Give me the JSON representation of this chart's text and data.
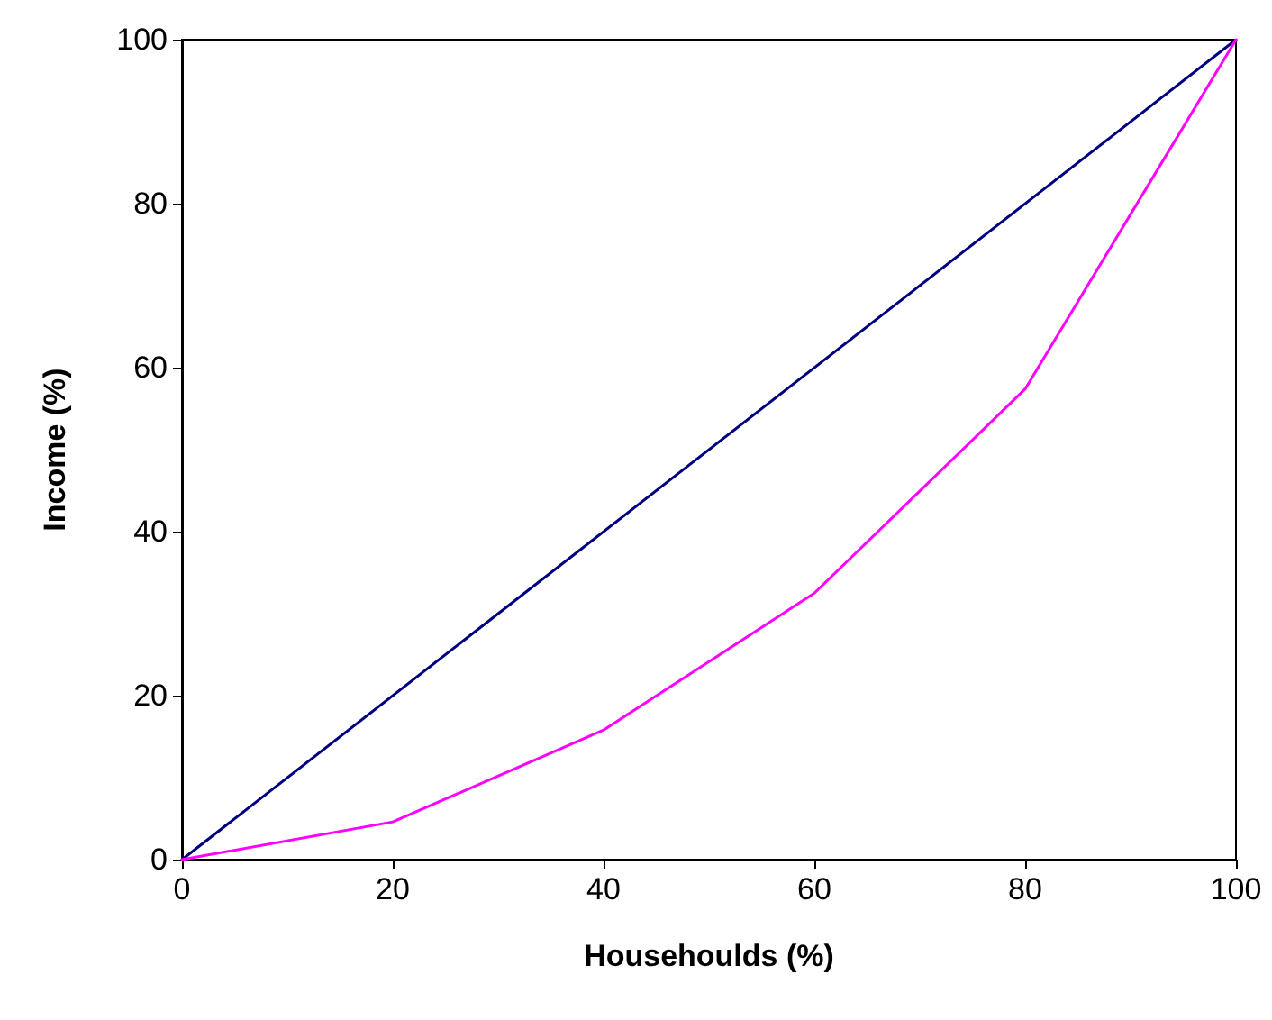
{
  "chart_data": {
    "type": "line",
    "xlabel": "Househoulds (%)",
    "ylabel": "Income (%)",
    "xlim": [
      0,
      100
    ],
    "ylim": [
      0,
      100
    ],
    "xticks": [
      0,
      20,
      40,
      60,
      80,
      100
    ],
    "yticks": [
      0,
      20,
      40,
      60,
      80,
      100
    ],
    "marker": "none",
    "line_style": "solid",
    "series": [
      {
        "color": "#000080",
        "x": [
          0,
          100
        ],
        "values": [
          0,
          100
        ]
      },
      {
        "color": "#ff00ff",
        "x": [
          0,
          20,
          40,
          60,
          80,
          100
        ],
        "values": [
          0,
          4.6,
          15.8,
          32.5,
          57.4,
          100
        ]
      }
    ]
  }
}
